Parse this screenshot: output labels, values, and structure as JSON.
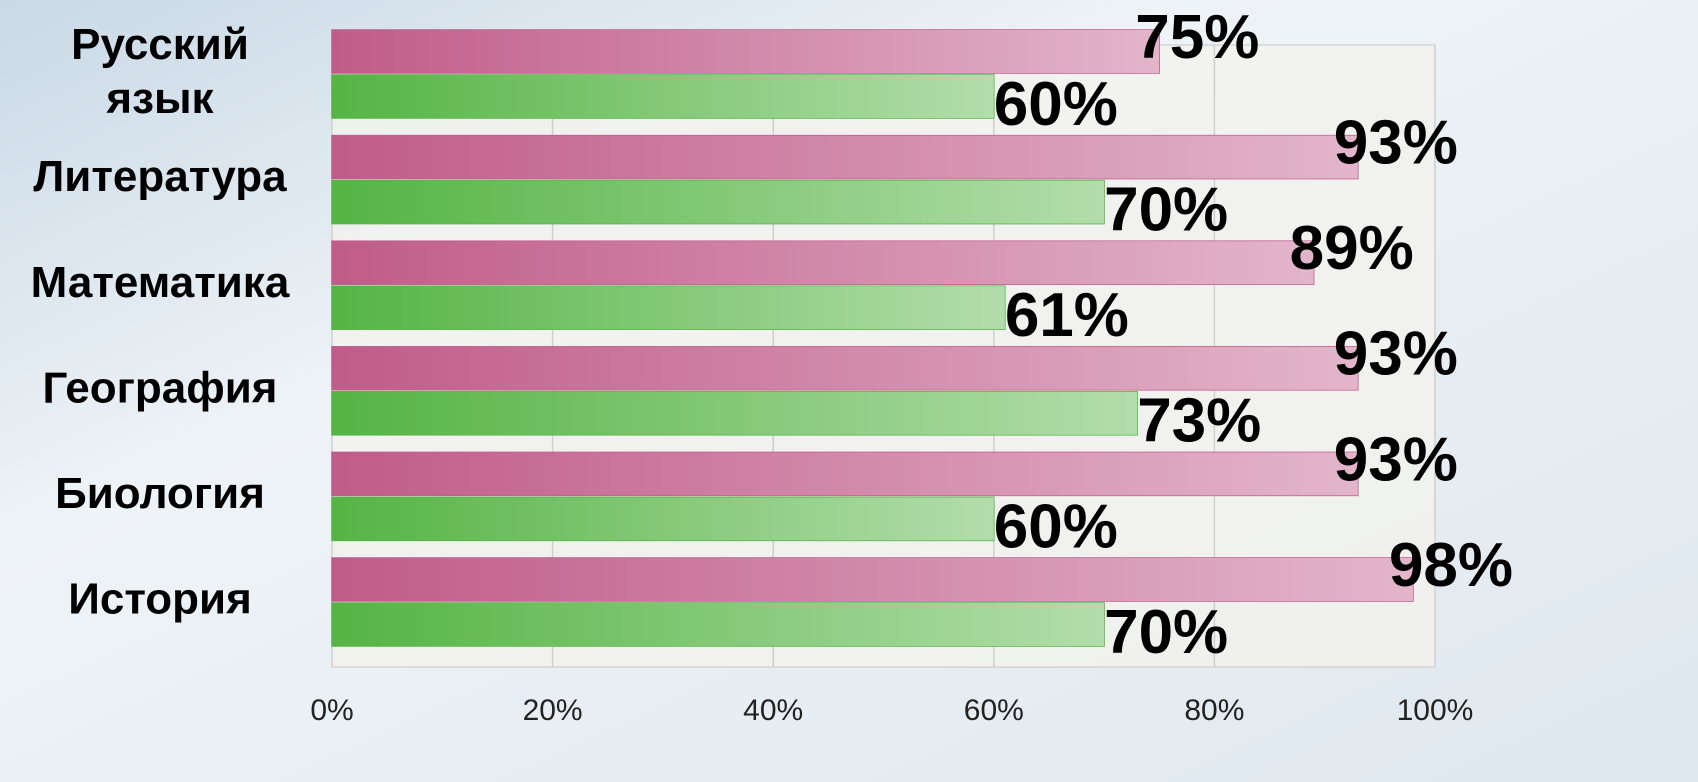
{
  "chart_data": {
    "type": "barh",
    "categories": [
      "Русский язык",
      "Литература",
      "Математика",
      "География",
      "Биология",
      "История"
    ],
    "series": [
      {
        "color": "#c05c8a",
        "values": [
          75,
          93,
          89,
          93,
          93,
          98
        ],
        "value_labels": [
          "75%",
          "93%",
          "89%",
          "93%",
          "93%",
          "98%"
        ]
      },
      {
        "color": "#55b444",
        "values": [
          60,
          70,
          61,
          73,
          60,
          70
        ],
        "value_labels": [
          "60%",
          "70%",
          "61%",
          "73%",
          "60%",
          "70%"
        ]
      }
    ],
    "xlim": [
      0,
      100
    ],
    "xticks": [
      {
        "value": 0,
        "label": "0%"
      },
      {
        "value": 20,
        "label": "20%"
      },
      {
        "value": 40,
        "label": "40%"
      },
      {
        "value": 60,
        "label": "60%"
      },
      {
        "value": 80,
        "label": "80%"
      },
      {
        "value": 100,
        "label": "100%"
      }
    ],
    "grid": true
  }
}
